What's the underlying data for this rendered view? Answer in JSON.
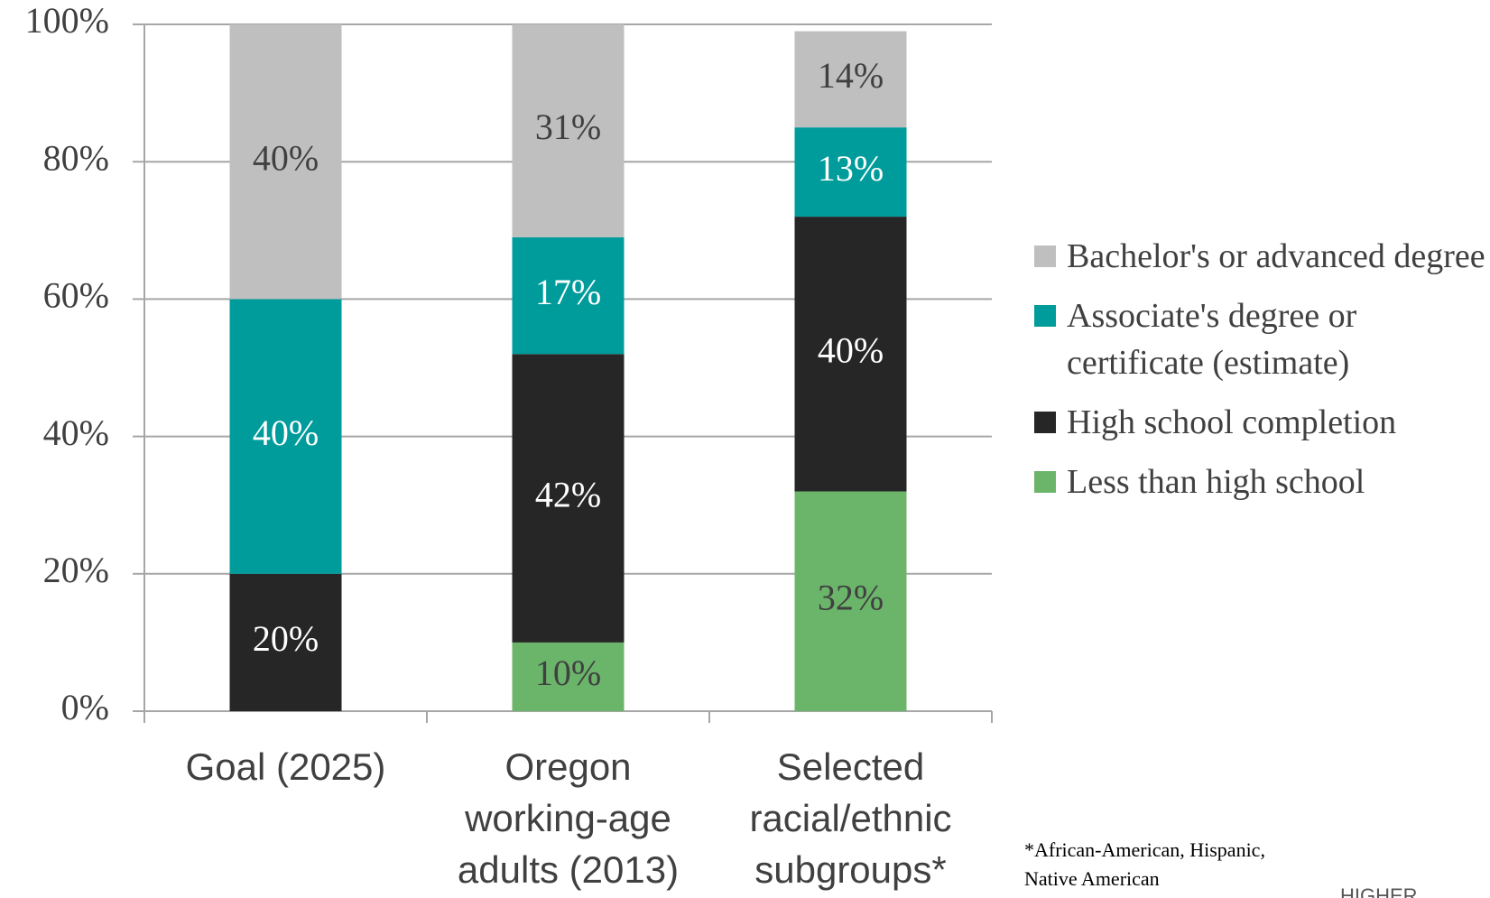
{
  "chart_data": {
    "type": "stacked_bar",
    "categories": [
      [
        "Goal (2025)"
      ],
      [
        "Oregon",
        "working-age",
        "adults (2013)"
      ],
      [
        "Selected",
        "racial/ethnic",
        "subgroups*"
      ]
    ],
    "series": [
      {
        "name": "Less than high school",
        "color": "#6bb56b",
        "values": [
          0,
          10,
          32
        ],
        "value_labels": [
          null,
          "10%",
          "32%"
        ]
      },
      {
        "name": "High school completion",
        "color": "#262626",
        "values": [
          20,
          42,
          40
        ],
        "value_labels": [
          "20%",
          "42%",
          "40%"
        ]
      },
      {
        "name": "Associate's degree or certificate (estimate)",
        "color": "#009b9b",
        "values": [
          40,
          17,
          13
        ],
        "value_labels": [
          "40%",
          "17%",
          "13%"
        ]
      },
      {
        "name": "Bachelor's or advanced degree",
        "color": "#bfbfbf",
        "values": [
          40,
          31,
          14
        ],
        "value_labels": [
          "40%",
          "31%",
          "14%"
        ]
      }
    ],
    "ylim": [
      0,
      100
    ],
    "yticks": [
      {
        "value": 0,
        "label": "0%"
      },
      {
        "value": 20,
        "label": "20%"
      },
      {
        "value": 40,
        "label": "40%"
      },
      {
        "value": 60,
        "label": "60%"
      },
      {
        "value": 80,
        "label": "80%"
      },
      {
        "value": 100,
        "label": "100%"
      }
    ],
    "grid": true,
    "legend": "right",
    "footnote": "*African-American, Hispanic, Native American",
    "logo": "HIGHER EDUCATION"
  }
}
